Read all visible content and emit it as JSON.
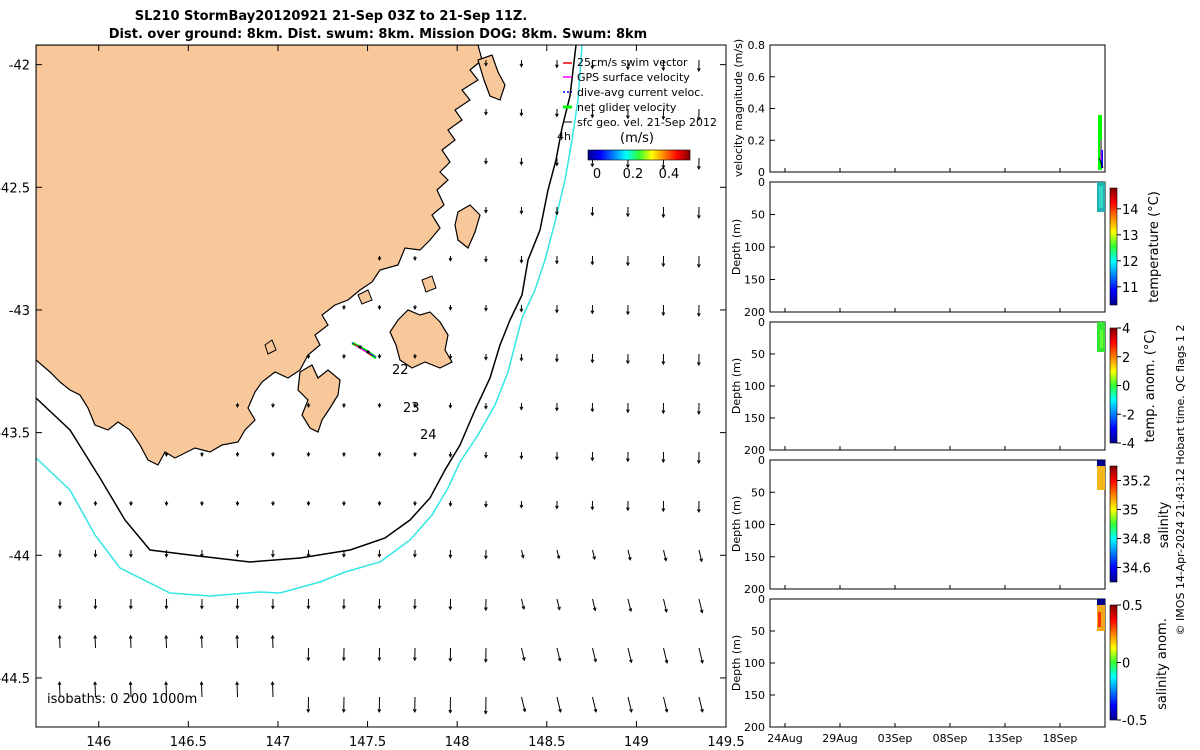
{
  "header": {
    "title_line1": "SL210 StormBay20120921 21-Sep 03Z to 21-Sep 11Z.",
    "title_line2": "Dist. over ground: 8km. Dist. swum: 8km. Mission DOG: 8km. Swum: 8km"
  },
  "map": {
    "x_ticks": [
      "146",
      "146.5",
      "147",
      "147.5",
      "148",
      "148.5",
      "149",
      "149.5"
    ],
    "y_ticks": [
      "-42",
      "-42.5",
      "-43",
      "-43.5",
      "-44",
      "-44.5"
    ],
    "xlim": [
      145.65,
      149.5
    ],
    "ylim": [
      -44.7,
      -41.92
    ],
    "isobath_label": "isobaths: 0   200   1000m",
    "day_labels": [
      "22",
      "23",
      "24"
    ],
    "hour_label": "4h",
    "legend": [
      {
        "label": "25cm/s swim vector",
        "color": "#ff0000"
      },
      {
        "label": "GPS surface velocity",
        "color": "#ff00ff"
      },
      {
        "label": "dive-avg current veloc.",
        "color": "#0000ff"
      },
      {
        "label": "net glider velocity",
        "color": "#00ff00"
      },
      {
        "label": "sfc geo. vel. 21-Sep 2012",
        "color": "#000000"
      }
    ],
    "speed_colorbar": {
      "label": "(m/s)",
      "ticks": [
        "0",
        "0.2",
        "0.4"
      ],
      "range": [
        0,
        0.5
      ]
    },
    "colors": {
      "land": "#f9c89a",
      "coast": "#000000",
      "isobath_200": "#000000",
      "isobath_1000": "#33e6e6"
    }
  },
  "panels": {
    "x_date_ticks": [
      "24Aug",
      "29Aug",
      "03Sep",
      "08Sep",
      "13Sep",
      "18Sep"
    ],
    "velocity": {
      "ylabel": "velocity magnitude (m/s)",
      "y_ticks": [
        "0",
        "0.2",
        "0.4",
        "0.6",
        "0.8"
      ],
      "ylim": [
        0,
        0.8
      ]
    },
    "depth_ticks": [
      "0",
      "50",
      "100",
      "150",
      "200"
    ],
    "depth_ylabel": "Depth (m)",
    "temperature": {
      "label": "temperature (°C)",
      "ticks": [
        "11",
        "12",
        "13",
        "14"
      ],
      "range": [
        10.3,
        14.8
      ]
    },
    "temp_anom": {
      "label": "temp. anom. (°C)",
      "ticks": [
        "-4",
        "-2",
        "0",
        "2",
        "4"
      ],
      "range": [
        -4,
        4
      ]
    },
    "salinity": {
      "label": "salinity",
      "ticks": [
        "34.6",
        "34.8",
        "35",
        "35.2"
      ],
      "range": [
        34.5,
        35.3
      ]
    },
    "salinity_anom": {
      "label": "salinity anom.",
      "ticks": [
        "-0.5",
        "0",
        "0.5"
      ],
      "range": [
        -0.5,
        0.5
      ]
    },
    "footer": "© IMOS 14-Apr-2024 21:43:12 Hobart time. QC flags 1  2"
  },
  "chart_data": [
    {
      "type": "scatter",
      "name_hint": "glider track map",
      "xlabel": "",
      "ylabel": "",
      "xlim": [
        145.65,
        149.5
      ],
      "ylim": [
        -44.7,
        -41.92
      ],
      "track": {
        "x": [
          147.47,
          147.52,
          147.57
        ],
        "y": [
          -43.12,
          -43.16,
          -43.2
        ]
      }
    },
    {
      "type": "line",
      "ylabel": "velocity magnitude (m/s)",
      "ylim": [
        0,
        0.8
      ],
      "x_dates": [
        "24Aug",
        "29Aug",
        "03Sep",
        "08Sep",
        "13Sep",
        "18Sep"
      ]
    }
  ]
}
